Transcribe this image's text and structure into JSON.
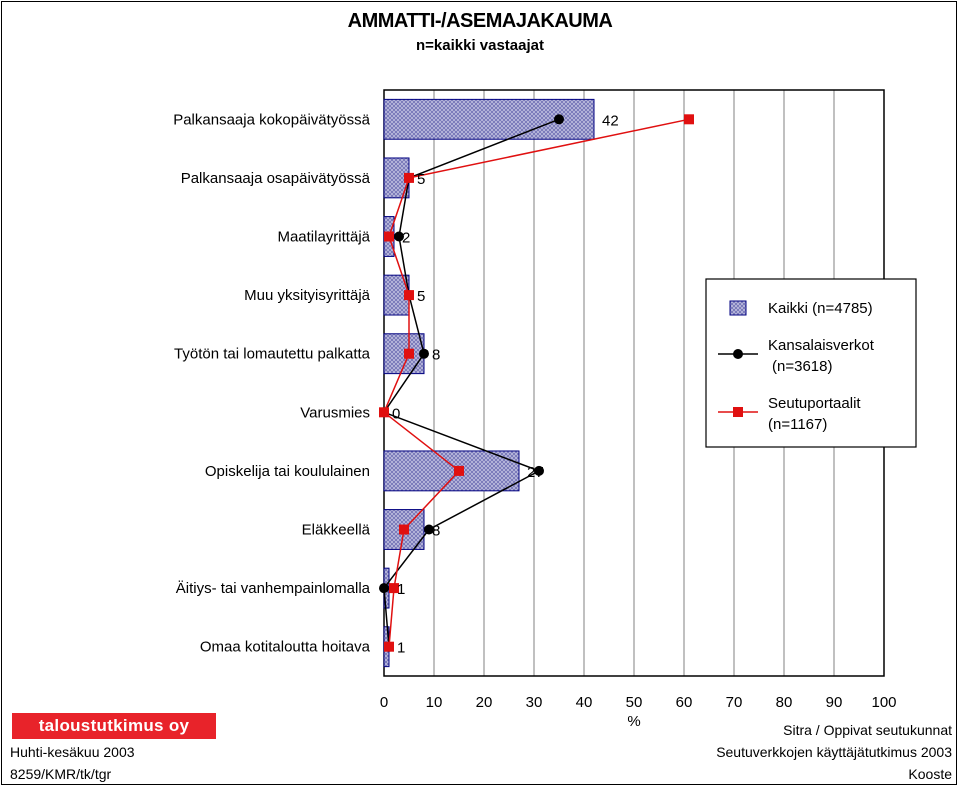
{
  "header": {
    "title": "AMMATTI-/ASEMAJAKAUMA",
    "subtitle": "n=kaikki vastaajat"
  },
  "footer": {
    "logo_text": "taloustutkimus oy",
    "left_line1": "Huhti-kesäkuu 2003",
    "left_line2": "8259/KMR/tk/tgr",
    "right_line1": "Sitra / Oppivat seutukunnat",
    "right_line2": "Seutuverkkojen käyttäjätutkimus 2003",
    "right_line3": "Kooste"
  },
  "colors": {
    "bar_fill": "#b9b9dc",
    "bar_border": "#000080",
    "line_black": "#000000",
    "line_red": "#e01010",
    "grid": "#808080"
  },
  "chart_data": {
    "type": "bar",
    "orientation": "horizontal",
    "categories": [
      "Palkansaaja kokopäivätyössä",
      "Palkansaaja osapäivätyössä",
      "Maatilayrittäjä",
      "Muu yksityisyrittäjä",
      "Työtön tai lomautettu palkatta",
      "Varusmies",
      "Opiskelija tai koululainen",
      "Eläkkeellä",
      "Äitiys- tai vanhempainlomalla",
      "Omaa kotitaloutta hoitava"
    ],
    "series": [
      {
        "name": "Kaikki (n=4785)",
        "legend_lines": [
          "Kaikki (n=4785)"
        ],
        "kind": "bar",
        "values": [
          42,
          5,
          2,
          5,
          8,
          0,
          27,
          8,
          1,
          1
        ],
        "data_labels": [
          "42",
          "5",
          "2",
          "5",
          "8",
          "0",
          "27",
          "8",
          "1",
          "1"
        ]
      },
      {
        "name": "Kansalaisverkot (n=3618)",
        "legend_lines": [
          "Kansalaisverkot",
          "(n=3618)"
        ],
        "kind": "line",
        "marker": "circle",
        "values": [
          35,
          5,
          3,
          5,
          8,
          0,
          31,
          9,
          0,
          1
        ]
      },
      {
        "name": "Seutuportaalit (n=1167)",
        "legend_lines": [
          "Seutuportaalit",
          "(n=1167)"
        ],
        "kind": "line",
        "marker": "square",
        "values": [
          61,
          5,
          1,
          5,
          5,
          0,
          15,
          4,
          2,
          1
        ]
      }
    ],
    "xlabel": "%",
    "xlim": [
      0,
      100
    ],
    "xticks": [
      0,
      10,
      20,
      30,
      40,
      50,
      60,
      70,
      80,
      90,
      100
    ],
    "grid": true,
    "legend": "right"
  }
}
